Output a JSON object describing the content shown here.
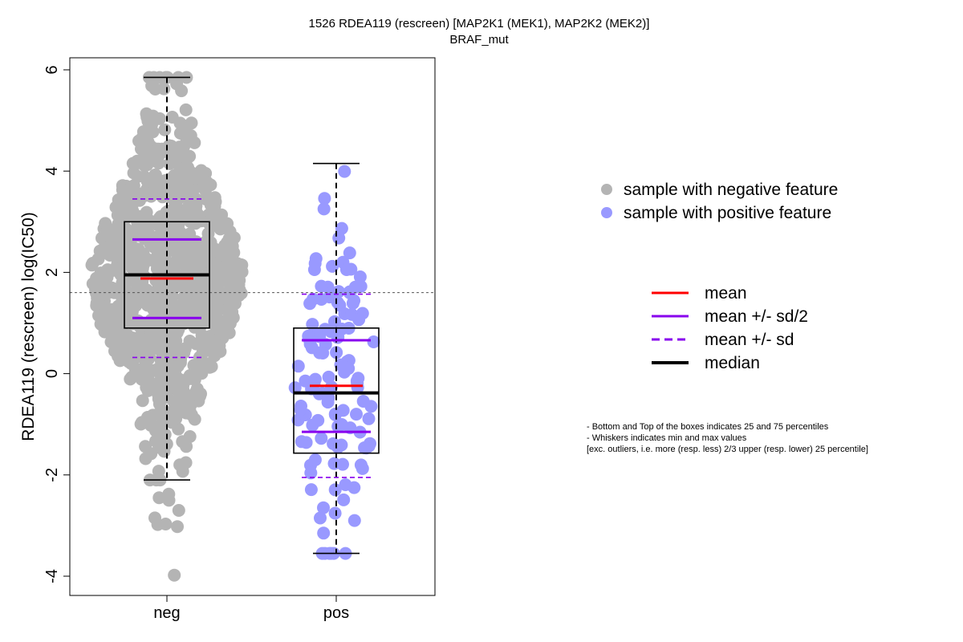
{
  "chart_data": {
    "type": "box_strip",
    "title": "1526 RDEA119 (rescreen) [MAP2K1 (MEK1), MAP2K2 (MEK2)]",
    "subtitle": "BRAF_mut",
    "ylabel": "RDEA119 (rescreen) log(IC50)",
    "ylim": [
      -4.4,
      6.2
    ],
    "yticks": [
      -4,
      -2,
      0,
      2,
      4,
      6
    ],
    "yticklabels": [
      "-4",
      "-2",
      "0",
      "2",
      "4",
      "6"
    ],
    "reference_line": 1.6,
    "categories": [
      "neg",
      "pos"
    ],
    "groups": [
      {
        "name": "neg",
        "n_points": 900,
        "whisker_min": -2.1,
        "q1": 0.9,
        "median": 1.95,
        "q3": 3.0,
        "whisker_max": 5.85,
        "mean": 1.88,
        "mean_plus_half_sd": 2.65,
        "mean_minus_half_sd": 1.1,
        "mean_plus_sd": 3.45,
        "mean_minus_sd": 0.32,
        "points_color": "#b4b4b4",
        "outliers": [
          -2.45,
          -2.5,
          -2.7,
          -2.85,
          -2.97,
          -3.02,
          -2.98,
          -2.38,
          -3.98
        ]
      },
      {
        "name": "pos",
        "n_points": 125,
        "whisker_min": -3.55,
        "q1": -1.57,
        "median": -0.38,
        "q3": 0.9,
        "whisker_max": 4.15,
        "mean": -0.24,
        "mean_plus_half_sd": 0.66,
        "mean_minus_half_sd": -1.15,
        "mean_plus_sd": 1.57,
        "mean_minus_sd": -2.05,
        "points_color": "#9999ff",
        "outliers": []
      }
    ],
    "legend_points": [
      {
        "label": "sample with negative feature",
        "color": "#b4b4b4"
      },
      {
        "label": "sample with positive feature",
        "color": "#9999ff"
      }
    ],
    "legend_lines": [
      {
        "label": "mean",
        "color": "#ff0000",
        "style": "solid"
      },
      {
        "label": "mean +/- sd/2",
        "color": "#8800ee",
        "style": "solid"
      },
      {
        "label": "mean +/- sd",
        "color": "#8800ee",
        "style": "dashed"
      },
      {
        "label": "median",
        "color": "#000000",
        "style": "solid-thick"
      }
    ],
    "notes": [
      "- Bottom and Top of the boxes indicates 25 and 75 percentiles",
      "- Whiskers indicates min and max values",
      "[exc. outliers, i.e. more (resp. less) 2/3 upper (resp. lower) 25 percentile]"
    ]
  }
}
